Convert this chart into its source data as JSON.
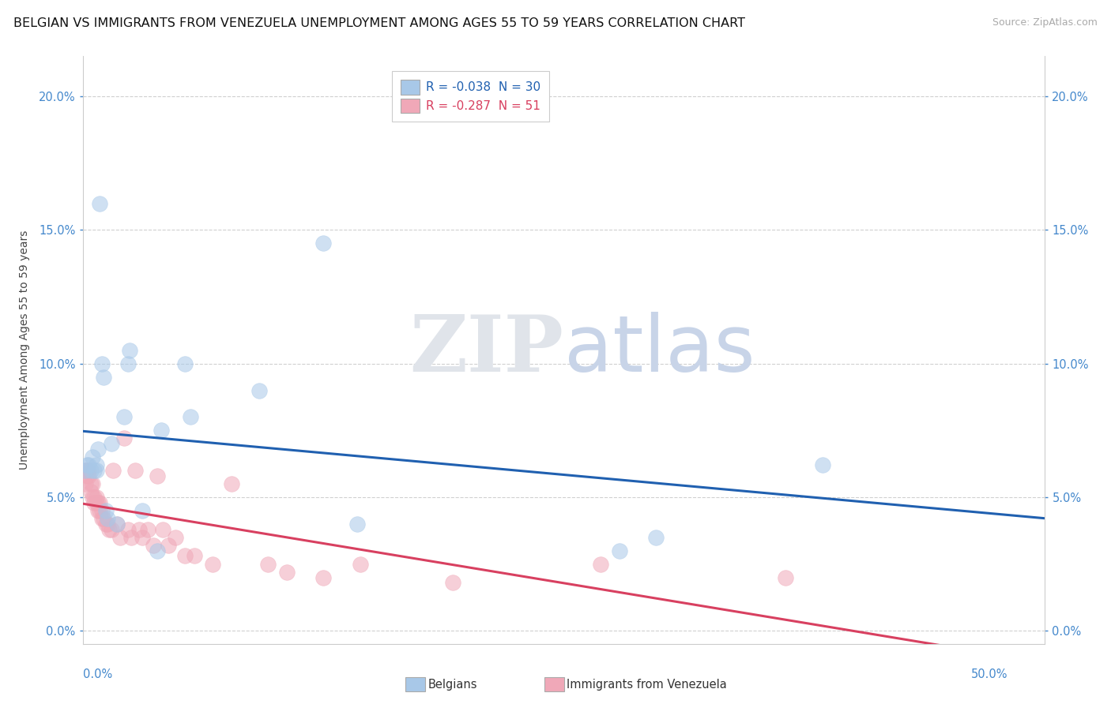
{
  "title": "BELGIAN VS IMMIGRANTS FROM VENEZUELA UNEMPLOYMENT AMONG AGES 55 TO 59 YEARS CORRELATION CHART",
  "source": "Source: ZipAtlas.com",
  "ylabel": "Unemployment Among Ages 55 to 59 years",
  "xlim": [
    0.0,
    0.52
  ],
  "ylim": [
    -0.005,
    0.215
  ],
  "yticks": [
    0.0,
    0.05,
    0.1,
    0.15,
    0.2
  ],
  "ytick_labels": [
    "0.0%",
    "5.0%",
    "10.0%",
    "15.0%",
    "20.0%"
  ],
  "legend_r1": "R = -0.038",
  "legend_n1": "N = 30",
  "legend_r2": "R = -0.287",
  "legend_n2": "N = 51",
  "legend_label1": "Belgians",
  "legend_label2": "Immigrants from Venezuela",
  "watermark_zip": "ZIP",
  "watermark_atlas": "atlas",
  "belgian_color": "#a8c8e8",
  "venezuela_color": "#f0a8b8",
  "belgian_line_color": "#2060b0",
  "venezuela_line_color": "#d84060",
  "tick_color": "#4488cc",
  "bg_color": "#ffffff",
  "grid_color": "#d0d0d0",
  "title_fontsize": 11.5,
  "axis_label_fontsize": 10,
  "tick_fontsize": 10.5,
  "belgian_x": [
    0.001,
    0.002,
    0.003,
    0.004,
    0.005,
    0.006,
    0.007,
    0.007,
    0.008,
    0.009,
    0.01,
    0.011,
    0.012,
    0.013,
    0.015,
    0.018,
    0.022,
    0.024,
    0.025,
    0.032,
    0.04,
    0.042,
    0.055,
    0.058,
    0.095,
    0.13,
    0.148,
    0.29,
    0.31,
    0.4
  ],
  "belgian_y": [
    0.06,
    0.062,
    0.062,
    0.06,
    0.065,
    0.06,
    0.062,
    0.06,
    0.068,
    0.16,
    0.1,
    0.095,
    0.045,
    0.042,
    0.07,
    0.04,
    0.08,
    0.1,
    0.105,
    0.045,
    0.03,
    0.075,
    0.1,
    0.08,
    0.09,
    0.145,
    0.04,
    0.03,
    0.035,
    0.062
  ],
  "venezuela_x": [
    0.001,
    0.001,
    0.002,
    0.002,
    0.003,
    0.003,
    0.004,
    0.004,
    0.005,
    0.005,
    0.006,
    0.006,
    0.007,
    0.007,
    0.008,
    0.008,
    0.009,
    0.009,
    0.01,
    0.01,
    0.011,
    0.012,
    0.013,
    0.014,
    0.015,
    0.016,
    0.018,
    0.02,
    0.022,
    0.024,
    0.026,
    0.028,
    0.03,
    0.032,
    0.035,
    0.038,
    0.04,
    0.043,
    0.046,
    0.05,
    0.055,
    0.06,
    0.07,
    0.08,
    0.1,
    0.11,
    0.13,
    0.15,
    0.2,
    0.28,
    0.38
  ],
  "venezuela_y": [
    0.055,
    0.06,
    0.06,
    0.058,
    0.06,
    0.058,
    0.055,
    0.052,
    0.055,
    0.05,
    0.05,
    0.048,
    0.05,
    0.048,
    0.048,
    0.045,
    0.048,
    0.045,
    0.045,
    0.042,
    0.042,
    0.04,
    0.04,
    0.038,
    0.038,
    0.06,
    0.04,
    0.035,
    0.072,
    0.038,
    0.035,
    0.06,
    0.038,
    0.035,
    0.038,
    0.032,
    0.058,
    0.038,
    0.032,
    0.035,
    0.028,
    0.028,
    0.025,
    0.055,
    0.025,
    0.022,
    0.02,
    0.025,
    0.018,
    0.025,
    0.02
  ]
}
